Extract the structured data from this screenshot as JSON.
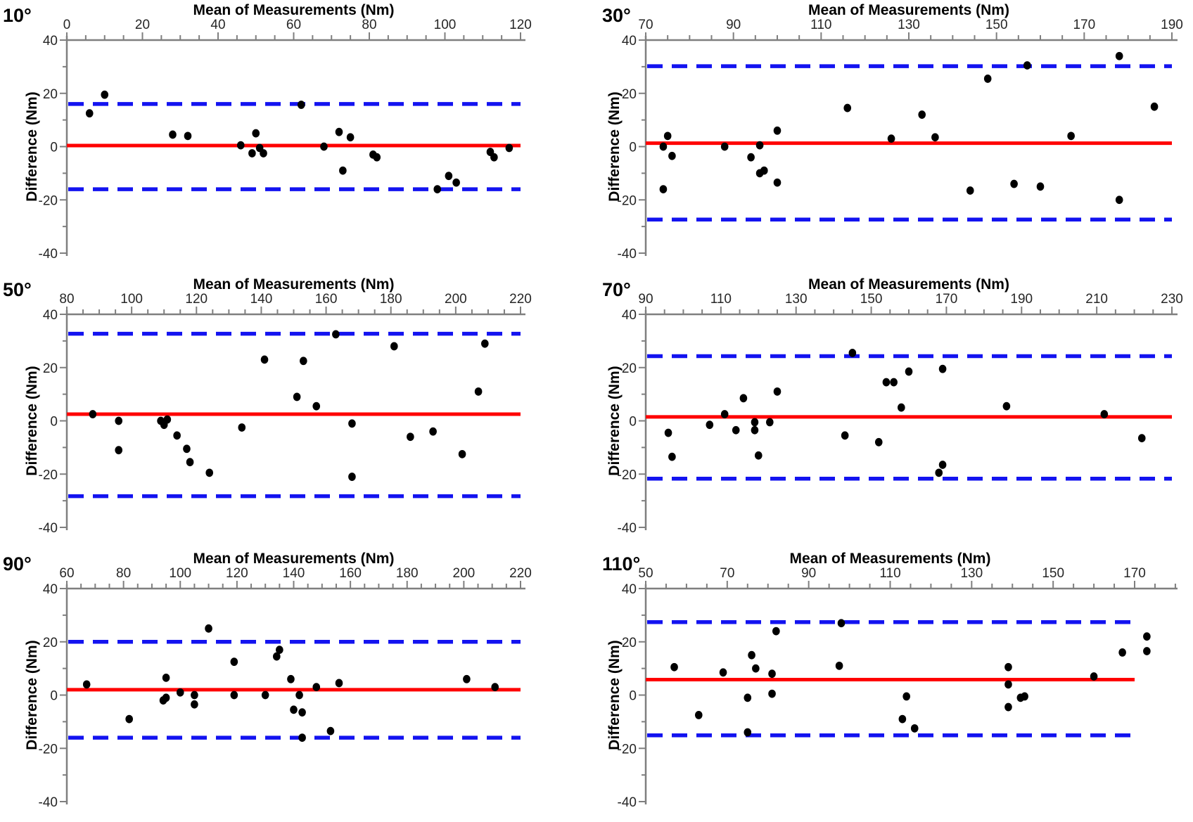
{
  "figure": {
    "background": "#ffffff",
    "colors": {
      "axis": "#7f7f7f",
      "tick_text": "#262626",
      "mean_line": "#ff0000",
      "loa_line": "#1313f0",
      "point": "#000000"
    },
    "axis_title_x": "Mean of Measurements (Nm)",
    "axis_title_y": "Difference (Nm)"
  },
  "chart_data": [
    {
      "type": "scatter",
      "label": "10°",
      "xlabel": "Mean of Measurements (Nm)",
      "ylabel": "Difference (Nm)",
      "xlim": [
        0,
        120
      ],
      "xticks": [
        0,
        20,
        40,
        60,
        80,
        100,
        120
      ],
      "x_minor_step": 5,
      "ylim": [
        -40,
        40
      ],
      "yticks": [
        40,
        20,
        0,
        -20,
        -40
      ],
      "y_minor_step": 10,
      "mean_line": 0.4,
      "loa_upper": 16.0,
      "loa_lower": -16.0,
      "points": [
        [
          6,
          12.5
        ],
        [
          10,
          19.5
        ],
        [
          28,
          4.5
        ],
        [
          32,
          4
        ],
        [
          46,
          0.5
        ],
        [
          50,
          5
        ],
        [
          49,
          -2.5
        ],
        [
          51,
          -0.5
        ],
        [
          52,
          -2.5
        ],
        [
          62,
          15.7
        ],
        [
          68,
          0
        ],
        [
          72,
          5.5
        ],
        [
          75,
          3.5
        ],
        [
          73,
          -9
        ],
        [
          81,
          -3
        ],
        [
          82,
          -4
        ],
        [
          98,
          -16
        ],
        [
          101,
          -11
        ],
        [
          103,
          -13.5
        ],
        [
          112,
          -2
        ],
        [
          113,
          -4
        ],
        [
          117,
          -0.5
        ]
      ]
    },
    {
      "type": "scatter",
      "label": "30°",
      "xlabel": "Mean of Measurements (Nm)",
      "ylabel": "Difference (Nm)",
      "xlim": [
        70,
        190
      ],
      "xticks": [
        70,
        90,
        110,
        130,
        150,
        170,
        190
      ],
      "x_minor_step": 5,
      "ylim": [
        -40,
        40
      ],
      "yticks": [
        40,
        20,
        0,
        -20,
        -40
      ],
      "y_minor_step": 10,
      "mean_line": 1.3,
      "loa_upper": 30.2,
      "loa_lower": -27.4,
      "points": [
        [
          74,
          0
        ],
        [
          75,
          4
        ],
        [
          76,
          -3.5
        ],
        [
          74,
          -16
        ],
        [
          88,
          0
        ],
        [
          94,
          -4
        ],
        [
          96,
          0.5
        ],
        [
          96,
          -10
        ],
        [
          97,
          -9
        ],
        [
          100,
          6
        ],
        [
          100,
          -13.5
        ],
        [
          116,
          14.5
        ],
        [
          126,
          3
        ],
        [
          133,
          12
        ],
        [
          136,
          3.5
        ],
        [
          144,
          -16.5
        ],
        [
          148,
          25.5
        ],
        [
          157,
          30.5
        ],
        [
          154,
          -14
        ],
        [
          160,
          -15
        ],
        [
          167,
          4
        ],
        [
          178,
          34
        ],
        [
          178,
          -20
        ],
        [
          186,
          15
        ]
      ]
    },
    {
      "type": "scatter",
      "label": "50°",
      "xlabel": "Mean of Measurements (Nm)",
      "ylabel": "Difference (Nm)",
      "xlim": [
        80,
        220
      ],
      "xticks": [
        80,
        100,
        120,
        140,
        160,
        180,
        200,
        220
      ],
      "x_minor_step": 5,
      "ylim": [
        -40,
        40
      ],
      "yticks": [
        40,
        20,
        0,
        -20,
        -40
      ],
      "y_minor_step": 10,
      "mean_line": 2.5,
      "loa_upper": 32.7,
      "loa_lower": -28.3,
      "points": [
        [
          88,
          2.5
        ],
        [
          96,
          0
        ],
        [
          96,
          -11
        ],
        [
          109,
          0
        ],
        [
          110,
          -1.5
        ],
        [
          111,
          0.5
        ],
        [
          114,
          -5.5
        ],
        [
          117,
          -10.5
        ],
        [
          118,
          -15.5
        ],
        [
          124,
          -19.5
        ],
        [
          134,
          -2.5
        ],
        [
          141,
          23
        ],
        [
          151,
          9
        ],
        [
          153,
          22.5
        ],
        [
          157,
          5.5
        ],
        [
          163,
          32.5
        ],
        [
          168,
          -1
        ],
        [
          168,
          -21
        ],
        [
          181,
          28
        ],
        [
          186,
          -6
        ],
        [
          193,
          -4
        ],
        [
          202,
          -12.5
        ],
        [
          207,
          11
        ],
        [
          209,
          29
        ]
      ]
    },
    {
      "type": "scatter",
      "label": "70°",
      "xlabel": "Mean of Measurements (Nm)",
      "ylabel": "Difference (Nm)",
      "xlim": [
        90,
        230
      ],
      "xticks": [
        90,
        110,
        130,
        150,
        170,
        190,
        210,
        230
      ],
      "x_minor_step": 5,
      "ylim": [
        -40,
        40
      ],
      "yticks": [
        40,
        20,
        0,
        -20,
        -40
      ],
      "y_minor_step": 10,
      "mean_line": 1.5,
      "loa_upper": 24.3,
      "loa_lower": -21.7,
      "points": [
        [
          96,
          -4.5
        ],
        [
          97,
          -13.5
        ],
        [
          107,
          -1.5
        ],
        [
          111,
          2.5
        ],
        [
          114,
          -3.5
        ],
        [
          116,
          8.5
        ],
        [
          119,
          -0.5
        ],
        [
          119,
          -3.5
        ],
        [
          120,
          -13
        ],
        [
          123,
          -0.5
        ],
        [
          125,
          11
        ],
        [
          143,
          -5.5
        ],
        [
          145,
          25.5
        ],
        [
          152,
          -8
        ],
        [
          154,
          14.5
        ],
        [
          156,
          14.5
        ],
        [
          158,
          5
        ],
        [
          160,
          18.5
        ],
        [
          168,
          -19.5
        ],
        [
          169,
          -16.5
        ],
        [
          169,
          19.5
        ],
        [
          186,
          5.5
        ],
        [
          212,
          2.5
        ],
        [
          222,
          -6.5
        ]
      ]
    },
    {
      "type": "scatter",
      "label": "90°",
      "xlabel": "Mean of Measurements (Nm)",
      "ylabel": "Difference (Nm)",
      "xlim": [
        60,
        220
      ],
      "xticks": [
        60,
        80,
        100,
        120,
        140,
        160,
        180,
        200,
        220
      ],
      "x_minor_step": 5,
      "ylim": [
        -40,
        40
      ],
      "yticks": [
        40,
        20,
        0,
        -20,
        -40
      ],
      "y_minor_step": 10,
      "mean_line": 2.0,
      "loa_upper": 20.0,
      "loa_lower": -16.0,
      "points": [
        [
          67,
          4
        ],
        [
          82,
          -9
        ],
        [
          94,
          -2
        ],
        [
          95,
          -1
        ],
        [
          95,
          6.5
        ],
        [
          100,
          1
        ],
        [
          105,
          0
        ],
        [
          105,
          -3.5
        ],
        [
          110,
          25
        ],
        [
          119,
          12.5
        ],
        [
          119,
          0
        ],
        [
          130,
          0
        ],
        [
          134,
          14.5
        ],
        [
          135,
          17
        ],
        [
          139,
          6
        ],
        [
          140,
          -5.5
        ],
        [
          142,
          0
        ],
        [
          143,
          -6.5
        ],
        [
          143,
          -16
        ],
        [
          148,
          3
        ],
        [
          153,
          -13.5
        ],
        [
          156,
          4.5
        ],
        [
          201,
          6
        ],
        [
          211,
          3
        ]
      ]
    },
    {
      "type": "scatter",
      "label": "110°",
      "xlabel": "Mean of Measurements (Nm)",
      "ylabel": "Difference (Nm)",
      "xlim": [
        50,
        170
      ],
      "xticks": [
        50,
        70,
        90,
        110,
        130,
        150,
        170
      ],
      "x_minor_step": 5,
      "ylim": [
        -40,
        40
      ],
      "yticks": [
        40,
        20,
        0,
        -20,
        -40
      ],
      "y_minor_step": 10,
      "mean_line": 5.8,
      "loa_upper": 27.4,
      "loa_lower": -15.1,
      "points": [
        [
          57,
          10.5
        ],
        [
          63,
          -7.5
        ],
        [
          69,
          8.5
        ],
        [
          75,
          -1
        ],
        [
          75,
          -14
        ],
        [
          76,
          15
        ],
        [
          77,
          10
        ],
        [
          81,
          8
        ],
        [
          81,
          0.5
        ],
        [
          82,
          24
        ],
        [
          97.5,
          11
        ],
        [
          98,
          27
        ],
        [
          113,
          -9
        ],
        [
          114,
          -0.5
        ],
        [
          116,
          -12.5
        ],
        [
          139,
          10.5
        ],
        [
          139,
          4
        ],
        [
          139,
          -4.5
        ],
        [
          142,
          -1
        ],
        [
          143,
          -0.5
        ],
        [
          160,
          7
        ],
        [
          167,
          16
        ],
        [
          173,
          22
        ],
        [
          173,
          16.5
        ]
      ]
    }
  ]
}
